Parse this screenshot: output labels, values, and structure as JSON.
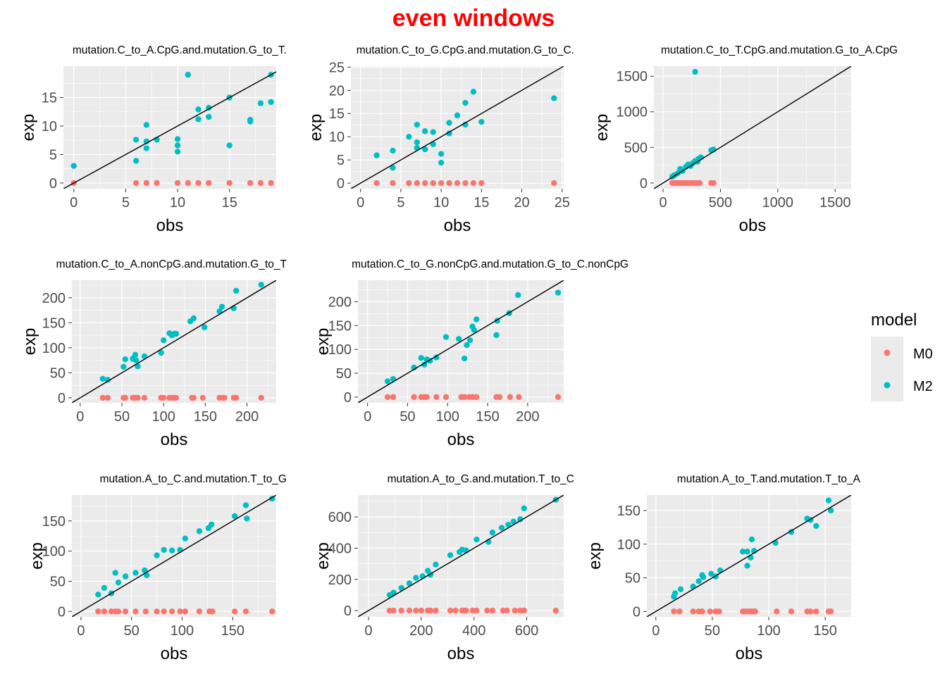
{
  "title": "even windows",
  "colors": {
    "M0": "#F8766D",
    "M2": "#00BFC4",
    "panel": "#EBEBEB",
    "grid": "#FFFFFF",
    "title": "#FF0000"
  },
  "legend": {
    "title": "model",
    "entries": [
      "M0",
      "M2"
    ],
    "placement": "right"
  },
  "chart_data": [
    {
      "type": "scatter",
      "title": "mutation.C_to_A.CpG.and.mutation.G_to_T.",
      "xlabel": "obs",
      "ylabel": "exp",
      "xlim": [
        -1,
        19.5
      ],
      "ylim": [
        -1,
        20.5
      ],
      "xticks": [
        0,
        5,
        10,
        15
      ],
      "yticks": [
        0,
        5,
        10,
        15
      ],
      "diagonal": true,
      "series": [
        {
          "name": "M0",
          "x": [
            0,
            6,
            7,
            8,
            10,
            11,
            12,
            13,
            15,
            17,
            18,
            19
          ],
          "y": [
            0,
            0,
            0,
            0,
            0,
            0,
            0,
            0,
            0,
            0,
            0,
            0
          ]
        },
        {
          "name": "M2",
          "x": [
            0,
            6,
            6,
            7,
            7,
            7,
            8,
            10,
            10,
            10,
            11,
            12,
            12,
            13,
            13,
            15,
            15,
            17,
            17,
            18,
            19,
            19
          ],
          "y": [
            3,
            7.6,
            3.9,
            10.2,
            7.3,
            6.1,
            7.6,
            7.7,
            6.6,
            5.5,
            19,
            12.9,
            11.2,
            13.2,
            11.6,
            15,
            6.6,
            11.1,
            10.8,
            14,
            14.2,
            19
          ]
        }
      ]
    },
    {
      "type": "scatter",
      "title": "mutation.C_to_G.CpG.and.mutation.G_to_C.",
      "xlabel": "obs",
      "ylabel": "exp",
      "xlim": [
        -1.2,
        25.2
      ],
      "ylim": [
        -1.2,
        25.2
      ],
      "xticks": [
        0,
        5,
        10,
        15,
        20,
        25
      ],
      "yticks": [
        0,
        5,
        10,
        15,
        20,
        25
      ],
      "diagonal": true,
      "series": [
        {
          "name": "M0",
          "x": [
            2,
            4,
            6,
            7,
            8,
            9,
            10,
            11,
            12,
            13,
            14,
            15,
            24
          ],
          "y": [
            0,
            0,
            0,
            0,
            0,
            0,
            0,
            0,
            0,
            0,
            0,
            0,
            0
          ]
        },
        {
          "name": "M2",
          "x": [
            2,
            4,
            4,
            6,
            7,
            7,
            7,
            8,
            8,
            9,
            9,
            10,
            10,
            11,
            11,
            12,
            13,
            13,
            14,
            15,
            24
          ],
          "y": [
            6,
            7,
            3.3,
            10,
            12.6,
            8.8,
            7.6,
            11.2,
            7.3,
            11,
            8.4,
            6.3,
            4.4,
            13,
            10.7,
            14.6,
            17.3,
            12.6,
            19.7,
            13.2,
            18.3
          ]
        }
      ]
    },
    {
      "type": "scatter",
      "title": "mutation.C_to_T.CpG.and.mutation.G_to_A.CpG",
      "xlabel": "obs",
      "ylabel": "exp",
      "xlim": [
        -80,
        1640
      ],
      "ylim": [
        -80,
        1640
      ],
      "xticks": [
        0,
        500,
        1000,
        1500
      ],
      "yticks": [
        0,
        500,
        1000,
        1500
      ],
      "diagonal": true,
      "series": [
        {
          "name": "M0",
          "x": [
            80,
            100,
            120,
            140,
            160,
            180,
            200,
            220,
            240,
            260,
            280,
            300,
            320,
            420,
            440
          ],
          "y": [
            0,
            0,
            0,
            0,
            0,
            0,
            0,
            0,
            0,
            0,
            0,
            0,
            0,
            0,
            0
          ]
        },
        {
          "name": "M2",
          "x": [
            80,
            100,
            130,
            150,
            170,
            200,
            220,
            240,
            260,
            280,
            300,
            310,
            330,
            420,
            440,
            280
          ],
          "y": [
            90,
            110,
            140,
            200,
            170,
            230,
            260,
            240,
            280,
            310,
            300,
            340,
            360,
            460,
            470,
            1560
          ]
        }
      ]
    },
    {
      "type": "scatter",
      "title": "mutation.C_to_A.nonCpG.and.mutation.G_to_T",
      "xlabel": "obs",
      "ylabel": "exp",
      "xlim": [
        -10,
        235
      ],
      "ylim": [
        -10,
        235
      ],
      "xticks": [
        0,
        50,
        100,
        150,
        200
      ],
      "yticks": [
        0,
        50,
        100,
        150,
        200
      ],
      "diagonal": true,
      "series": [
        {
          "name": "M0",
          "x": [
            27,
            33,
            52,
            54,
            63,
            66,
            69,
            77,
            97,
            100,
            107,
            110,
            113,
            115,
            134,
            136,
            147,
            167,
            171,
            173,
            184,
            187,
            217
          ],
          "y": [
            0,
            0,
            0,
            0,
            0,
            0,
            0,
            0,
            0,
            0,
            0,
            0,
            0,
            0,
            0,
            0,
            0,
            0,
            0,
            0,
            0,
            0,
            0
          ]
        },
        {
          "name": "M2",
          "x": [
            27,
            33,
            52,
            54,
            63,
            66,
            67,
            69,
            77,
            97,
            100,
            107,
            110,
            113,
            115,
            132,
            136,
            149,
            167,
            170,
            184,
            187,
            217
          ],
          "y": [
            38,
            36,
            62,
            77,
            78,
            86,
            75,
            63,
            83,
            90,
            115,
            129,
            125,
            128,
            128,
            153,
            159,
            141,
            173,
            182,
            179,
            214,
            226
          ]
        }
      ]
    },
    {
      "type": "scatter",
      "title": "mutation.C_to_G.nonCpG.and.mutation.G_to_C.nonCpG",
      "xlabel": "obs",
      "ylabel": "exp",
      "xlim": [
        -12,
        245
      ],
      "ylim": [
        -12,
        245
      ],
      "xticks": [
        0,
        50,
        100,
        150,
        200
      ],
      "yticks": [
        0,
        50,
        100,
        150,
        200
      ],
      "diagonal": true,
      "series": [
        {
          "name": "M0",
          "x": [
            25,
            32,
            58,
            67,
            71,
            74,
            86,
            98,
            117,
            121,
            127,
            131,
            136,
            161,
            165,
            178,
            189,
            238
          ],
          "y": [
            0,
            0,
            0,
            0,
            0,
            0,
            0,
            0,
            0,
            0,
            0,
            0,
            0,
            0,
            0,
            0,
            0,
            0
          ]
        },
        {
          "name": "M2",
          "x": [
            25,
            32,
            58,
            67,
            71,
            74,
            78,
            86,
            98,
            114,
            121,
            124,
            128,
            131,
            133,
            136,
            161,
            162,
            177,
            188,
            238
          ],
          "y": [
            33,
            38,
            62,
            82,
            68,
            79,
            76,
            83,
            126,
            122,
            81,
            109,
            119,
            148,
            141,
            163,
            130,
            160,
            176,
            214,
            219
          ]
        }
      ]
    },
    {
      "type": "scatter",
      "title": "mutation.A_to_C.and.mutation.T_to_G",
      "xlabel": "obs",
      "ylabel": "exp",
      "xlim": [
        -9,
        193
      ],
      "ylim": [
        -9,
        193
      ],
      "xticks": [
        0,
        50,
        100,
        150
      ],
      "yticks": [
        0,
        50,
        100,
        150
      ],
      "diagonal": true,
      "series": [
        {
          "name": "M0",
          "x": [
            17,
            23,
            30,
            34,
            37,
            44,
            54,
            64,
            75,
            82,
            90,
            98,
            103,
            117,
            127,
            130,
            152,
            163,
            189
          ],
          "y": [
            0,
            0,
            0,
            0,
            0,
            0,
            0,
            0,
            0,
            0,
            0,
            0,
            0,
            0,
            0,
            0,
            0,
            0,
            0
          ]
        },
        {
          "name": "M2",
          "x": [
            17,
            23,
            30,
            34,
            37,
            44,
            54,
            63,
            65,
            75,
            82,
            90,
            98,
            103,
            117,
            126,
            129,
            152,
            163,
            164,
            189
          ],
          "y": [
            28,
            39,
            30,
            64,
            48,
            58,
            64,
            68,
            60,
            93,
            102,
            101,
            102,
            121,
            133,
            138,
            144,
            158,
            176,
            154,
            187
          ]
        }
      ]
    },
    {
      "type": "scatter",
      "title": "mutation.A_to_G.and.mutation.T_to_C",
      "xlabel": "obs",
      "ylabel": "exp",
      "xlim": [
        -40,
        740
      ],
      "ylim": [
        -40,
        740
      ],
      "xticks": [
        0,
        200,
        400,
        600
      ],
      "yticks": [
        0,
        200,
        400,
        600
      ],
      "diagonal": true,
      "series": [
        {
          "name": "M0",
          "x": [
            80,
            95,
            125,
            155,
            180,
            200,
            225,
            235,
            255,
            310,
            330,
            355,
            365,
            370,
            395,
            410,
            450,
            470,
            510,
            525,
            555,
            575,
            590,
            710
          ],
          "y": [
            0,
            0,
            0,
            0,
            0,
            0,
            0,
            0,
            0,
            0,
            0,
            0,
            0,
            0,
            0,
            0,
            0,
            0,
            0,
            0,
            0,
            0,
            0,
            0
          ]
        },
        {
          "name": "M2",
          "x": [
            80,
            95,
            125,
            155,
            180,
            205,
            225,
            235,
            255,
            310,
            345,
            355,
            370,
            410,
            455,
            470,
            505,
            530,
            550,
            575,
            590,
            710
          ],
          "y": [
            100,
            115,
            145,
            175,
            210,
            220,
            255,
            230,
            295,
            355,
            375,
            390,
            385,
            455,
            440,
            500,
            530,
            550,
            570,
            585,
            655,
            710
          ]
        }
      ]
    },
    {
      "type": "scatter",
      "title": "mutation.A_to_T.and.mutation.T_to_A",
      "xlabel": "obs",
      "ylabel": "exp",
      "xlim": [
        -8,
        173
      ],
      "ylim": [
        -8,
        173
      ],
      "xticks": [
        0,
        50,
        100,
        150
      ],
      "yticks": [
        0,
        50,
        100,
        150
      ],
      "diagonal": true,
      "series": [
        {
          "name": "M0",
          "x": [
            16,
            21,
            33,
            38,
            41,
            48,
            53,
            56,
            77,
            79,
            82,
            84,
            86,
            88,
            107,
            120,
            134,
            137,
            142,
            153,
            155
          ],
          "y": [
            0,
            0,
            0,
            0,
            0,
            0,
            0,
            0,
            0,
            0,
            0,
            0,
            0,
            0,
            0,
            0,
            0,
            0,
            0,
            0,
            0
          ]
        },
        {
          "name": "M2",
          "x": [
            16,
            17,
            22,
            33,
            38,
            41,
            42,
            49,
            53,
            57,
            77,
            81,
            81,
            84,
            85,
            87,
            106,
            120,
            134,
            137,
            142,
            153,
            155
          ],
          "y": [
            22,
            27,
            33,
            37,
            45,
            54,
            51,
            56,
            52,
            61,
            89,
            89,
            68,
            80,
            107,
            90,
            102,
            118,
            138,
            136,
            127,
            165,
            150
          ]
        }
      ]
    }
  ]
}
